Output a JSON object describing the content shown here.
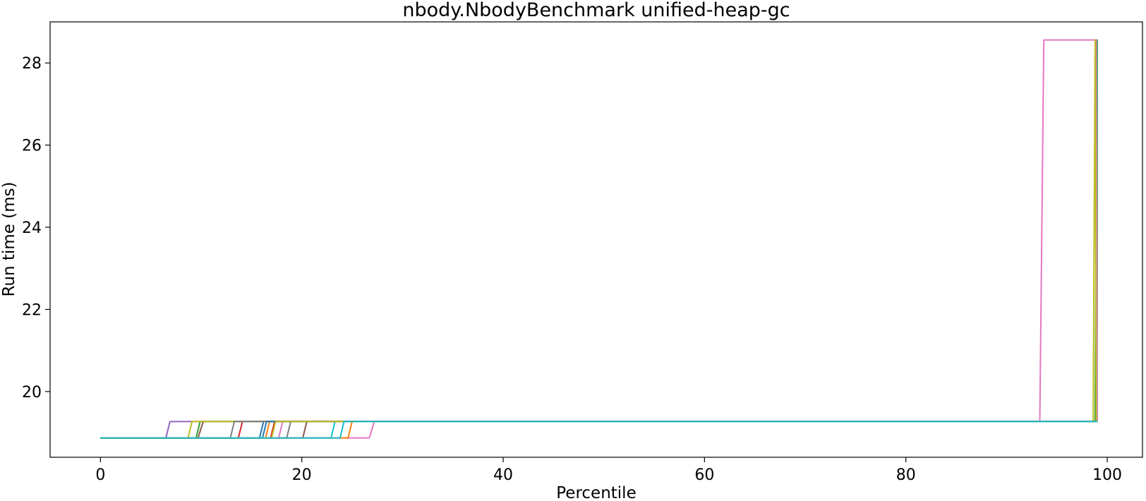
{
  "chart_data": {
    "type": "line",
    "title": "nbody.NbodyBenchmark unified-heap-gc",
    "xlabel": "Percentile",
    "ylabel": "Run time (ms)",
    "xlim": [
      -5,
      103.5
    ],
    "ylim": [
      18.4,
      29.0
    ],
    "xticks": [
      0,
      20,
      40,
      60,
      80,
      100
    ],
    "yticks": [
      20,
      22,
      24,
      26,
      28
    ],
    "grid": false,
    "legend": "none",
    "series": [
      {
        "color": "#1f77b4",
        "x": [
          0,
          15.8,
          16.2,
          98.9,
          99.0
        ],
        "y": [
          18.87,
          18.87,
          19.27,
          19.27,
          19.27
        ]
      },
      {
        "color": "#ff7f0e",
        "x": [
          0,
          16.4,
          16.8,
          98.9,
          99.0
        ],
        "y": [
          18.87,
          18.87,
          19.27,
          19.27,
          19.27
        ]
      },
      {
        "color": "#2ca02c",
        "x": [
          0,
          9.5,
          9.9,
          98.8,
          99.0,
          99.0
        ],
        "y": [
          18.87,
          18.87,
          19.27,
          19.27,
          28.56,
          19.27
        ]
      },
      {
        "color": "#d62728",
        "x": [
          0,
          13.7,
          14.1,
          98.9,
          99.0
        ],
        "y": [
          18.87,
          18.87,
          19.27,
          19.27,
          19.27
        ]
      },
      {
        "color": "#9467bd",
        "x": [
          0,
          6.5,
          6.9,
          98.9,
          99.0
        ],
        "y": [
          18.87,
          18.87,
          19.27,
          19.27,
          19.27
        ]
      },
      {
        "color": "#8c564b",
        "x": [
          0,
          9.7,
          10.2,
          98.9,
          99.0
        ],
        "y": [
          18.87,
          18.87,
          19.27,
          19.27,
          19.27
        ]
      },
      {
        "color": "#e377c2",
        "x": [
          0,
          26.7,
          27.2,
          93.3,
          93.7,
          98.9,
          99.0
        ],
        "y": [
          18.87,
          18.87,
          19.27,
          19.27,
          28.56,
          28.56,
          19.27
        ]
      },
      {
        "color": "#7f7f7f",
        "x": [
          0,
          18.5,
          18.9,
          98.9,
          99.0
        ],
        "y": [
          18.87,
          18.87,
          19.27,
          19.27,
          19.27
        ]
      },
      {
        "color": "#bcbd22",
        "x": [
          0,
          8.7,
          9.1,
          98.6,
          98.8,
          98.9
        ],
        "y": [
          18.87,
          18.87,
          19.27,
          19.27,
          28.56,
          19.27
        ]
      },
      {
        "color": "#17becf",
        "x": [
          0,
          22.9,
          23.3,
          98.9,
          99.0
        ],
        "y": [
          18.87,
          18.87,
          19.27,
          19.27,
          19.27
        ]
      },
      {
        "color": "#d62728",
        "x": [
          0,
          16.9,
          17.3,
          98.9,
          99.0
        ],
        "y": [
          18.87,
          18.87,
          19.27,
          19.27,
          19.27
        ]
      },
      {
        "color": "#8c564b",
        "x": [
          0,
          20.1,
          20.5,
          98.9,
          99.0
        ],
        "y": [
          18.87,
          18.87,
          19.27,
          19.27,
          19.27
        ]
      },
      {
        "color": "#e377c2",
        "x": [
          0,
          17.7,
          18.1,
          98.9,
          99.0
        ],
        "y": [
          18.87,
          18.87,
          19.27,
          19.27,
          19.27
        ]
      },
      {
        "color": "#7f7f7f",
        "x": [
          0,
          12.9,
          13.3,
          98.9,
          99.0
        ],
        "y": [
          18.87,
          18.87,
          19.27,
          19.27,
          19.27
        ]
      },
      {
        "color": "#ff7f0e",
        "x": [
          0,
          24.6,
          25.0,
          98.9,
          99.0
        ],
        "y": [
          18.87,
          18.87,
          19.27,
          19.27,
          19.27
        ]
      },
      {
        "color": "#1f77b4",
        "x": [
          0,
          16.1,
          16.5,
          98.9,
          99.0
        ],
        "y": [
          18.87,
          18.87,
          19.27,
          19.27,
          19.27
        ]
      },
      {
        "color": "#bcbd22",
        "x": [
          0,
          17.0,
          17.4,
          98.9,
          99.0
        ],
        "y": [
          18.87,
          18.87,
          19.27,
          19.27,
          19.27
        ]
      },
      {
        "color": "#17becf",
        "x": [
          0,
          23.8,
          24.2,
          98.9,
          99.0
        ],
        "y": [
          18.87,
          18.87,
          19.27,
          19.27,
          19.27
        ]
      }
    ]
  }
}
